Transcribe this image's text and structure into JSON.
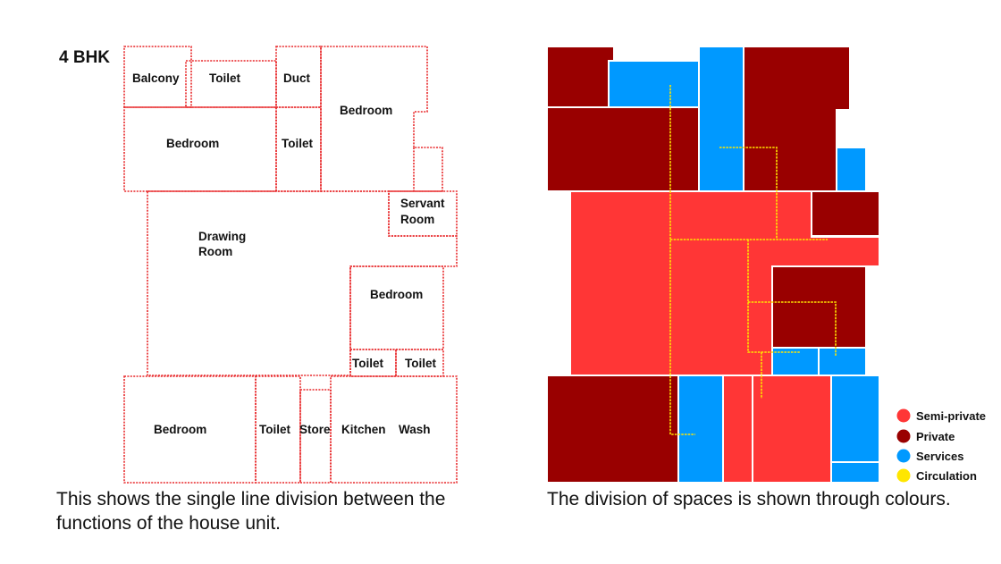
{
  "left_plan": {
    "title": "4 BHK",
    "rooms": {
      "balcony": "Balcony",
      "toilet_top": "Toilet",
      "duct": "Duct",
      "bedroom_top_right": "Bedroom",
      "bedroom_top_left": "Bedroom",
      "toilet_mid": "Toilet",
      "servant_room_line1": "Servant",
      "servant_room_line2": "Room",
      "drawing_room_line1": "Drawing",
      "drawing_room_line2": "Room",
      "bedroom_right": "Bedroom",
      "toilet_right_1": "Toilet",
      "toilet_right_2": "Toilet",
      "bedroom_bottom": "Bedroom",
      "toilet_bottom": "Toilet",
      "store": "Store",
      "kitchen": "Kitchen",
      "wash": "Wash"
    },
    "line_color": "#e8292b"
  },
  "right_plan": {
    "colors": {
      "semi_private": "#ff3636",
      "private": "#990000",
      "services": "#0099ff",
      "circulation": "#ffe600"
    }
  },
  "legend": {
    "semi_private": "Semi-private",
    "private": "Private",
    "services": "Services",
    "circulation": "Circulation"
  },
  "captions": {
    "left": "This shows the single line division between the functions of the house unit.",
    "right": "The division of spaces is shown through colours."
  }
}
